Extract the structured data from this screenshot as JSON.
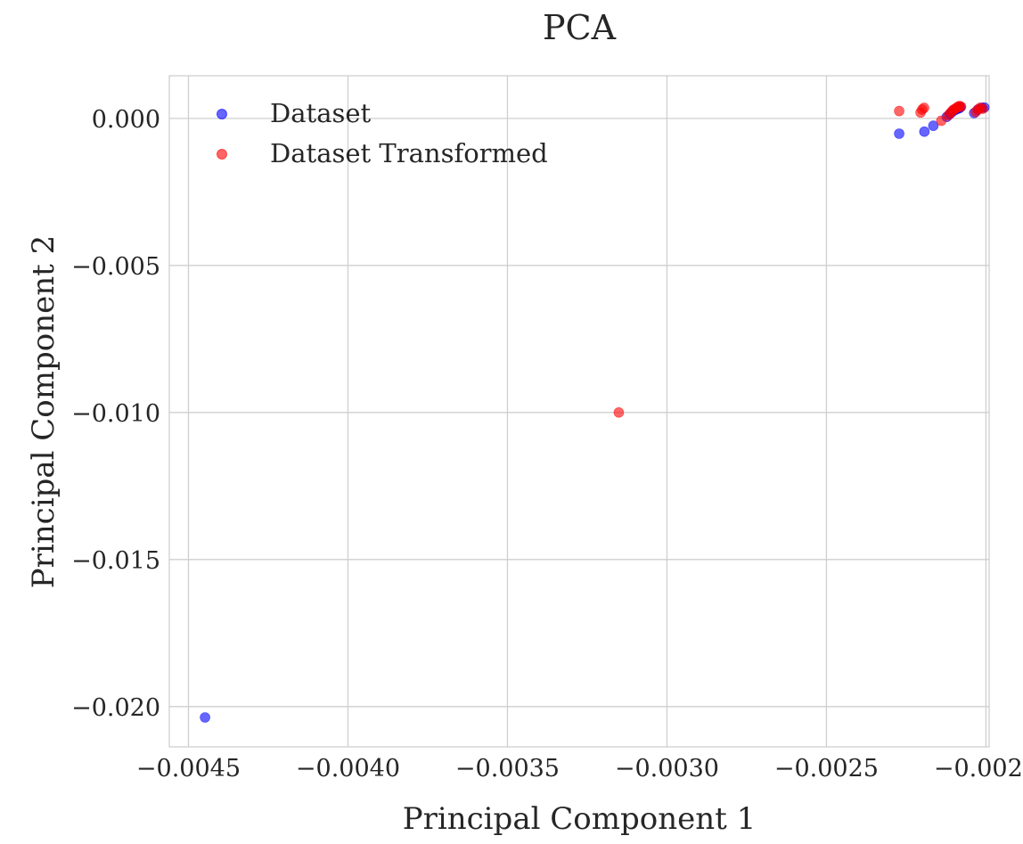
{
  "chart_data": {
    "type": "scatter",
    "title": "PCA",
    "xlabel": "Principal Component 1",
    "ylabel": "Principal Component 2",
    "xlim": [
      -0.00456,
      -0.00199
    ],
    "ylim": [
      -0.02137,
      0.00145
    ],
    "xticks": [
      -0.0045,
      -0.004,
      -0.0035,
      -0.003,
      -0.0025,
      -0.002
    ],
    "xtick_labels": [
      "−0.0045",
      "−0.0040",
      "−0.0035",
      "−0.0030",
      "−0.0025",
      "−0.0020"
    ],
    "yticks": [
      0.0,
      -0.005,
      -0.01,
      -0.015,
      -0.02
    ],
    "ytick_labels": [
      "0.000",
      "−0.005",
      "−0.010",
      "−0.015",
      "−0.020"
    ],
    "grid": true,
    "legend": "upper-left",
    "series": [
      {
        "name": "Dataset",
        "color": "#0000ff",
        "points": [
          [
            -0.004448,
            -0.02037
          ],
          [
            -0.002272,
            -0.00052
          ],
          [
            -0.002193,
            -0.00045
          ],
          [
            -0.002165,
            -0.00025
          ],
          [
            -0.002123,
            5e-05
          ],
          [
            -0.002113,
            0.00015
          ],
          [
            -0.002106,
            0.00022
          ],
          [
            -0.002098,
            0.00028
          ],
          [
            -0.00209,
            0.00032
          ],
          [
            -0.002083,
            0.00035
          ],
          [
            -0.00208,
            0.00038
          ],
          [
            -0.002037,
            0.00018
          ],
          [
            -0.002025,
            0.0003
          ],
          [
            -0.002013,
            0.00036
          ],
          [
            -0.002005,
            0.00037
          ]
        ]
      },
      {
        "name": "Dataset Transformed",
        "color": "#ff0000",
        "points": [
          [
            -0.003151,
            -0.01
          ],
          [
            -0.002272,
            0.00025
          ],
          [
            -0.002205,
            0.0002
          ],
          [
            -0.0022,
            0.0003
          ],
          [
            -0.002194,
            0.00036
          ],
          [
            -0.00214,
            -8e-05
          ],
          [
            -0.002118,
            0.0001
          ],
          [
            -0.00211,
            0.0002
          ],
          [
            -0.002104,
            0.00028
          ],
          [
            -0.002098,
            0.00032
          ],
          [
            -0.002092,
            0.00036
          ],
          [
            -0.002087,
            0.0004
          ],
          [
            -0.002083,
            0.00042
          ],
          [
            -0.002078,
            0.0004
          ],
          [
            -0.002032,
            0.00022
          ],
          [
            -0.002025,
            0.0003
          ],
          [
            -0.002018,
            0.00036
          ],
          [
            -0.00201,
            0.00033
          ]
        ]
      }
    ]
  }
}
